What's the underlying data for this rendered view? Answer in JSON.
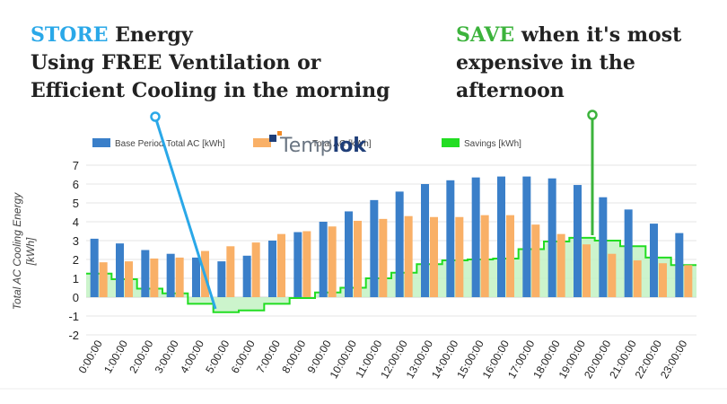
{
  "headline_left": {
    "keyword": "STORE",
    "line1_rest": " Energy",
    "line2": "Using FREE Ventilation or",
    "line3": "Efficient Cooling in the morning"
  },
  "headline_right": {
    "keyword": "SAVE",
    "line1_rest": " when it's most",
    "line2": "expensive in the",
    "line3": "afternoon"
  },
  "logo": {
    "part1": "Temp",
    "part2": "lok"
  },
  "colors": {
    "store_accent": "#2aa8e8",
    "save_accent": "#3cb33c",
    "base_bar": "#3a7fc9",
    "current_bar": "#f9b067",
    "savings_line": "#22dd22",
    "savings_fill": "#c3f2c3",
    "logo_dark": "#1f3e78",
    "logo_orange": "#f28a24",
    "logo_light": "#6a7582"
  },
  "chart_data": {
    "type": "bar",
    "categories": [
      "0:00:00",
      "1:00:00",
      "2:00:00",
      "3:00:00",
      "4:00:00",
      "5:00:00",
      "6:00:00",
      "7:00:00",
      "8:00:00",
      "9:00:00",
      "10:00:00",
      "11:00:00",
      "12:00:00",
      "13:00:00",
      "14:00:00",
      "15:00:00",
      "16:00:00",
      "17:00:00",
      "18:00:00",
      "19:00:00",
      "20:00:00",
      "21:00:00",
      "22:00:00",
      "23:00:00"
    ],
    "series": [
      {
        "name": "Base Period Total AC [kWh]",
        "kind": "bar",
        "values": [
          3.1,
          2.85,
          2.5,
          2.3,
          2.1,
          1.9,
          2.2,
          3.0,
          3.45,
          4.0,
          4.55,
          5.15,
          5.6,
          6.0,
          6.2,
          6.35,
          6.4,
          6.4,
          6.3,
          5.95,
          5.3,
          4.65,
          3.9,
          3.4
        ]
      },
      {
        "name": "Total AC [kWh]",
        "kind": "bar",
        "values": [
          1.85,
          1.9,
          2.05,
          2.1,
          2.45,
          2.7,
          2.9,
          3.35,
          3.5,
          3.75,
          4.05,
          4.15,
          4.3,
          4.25,
          4.25,
          4.35,
          4.35,
          3.85,
          3.35,
          2.8,
          2.3,
          1.95,
          1.8,
          1.7
        ]
      },
      {
        "name": "Savings [kWh]",
        "kind": "area-step",
        "values": [
          1.25,
          0.95,
          0.45,
          0.2,
          -0.35,
          -0.8,
          -0.7,
          -0.35,
          -0.05,
          0.25,
          0.5,
          1.0,
          1.3,
          1.75,
          1.95,
          2.0,
          2.05,
          2.55,
          2.95,
          3.15,
          3.0,
          2.7,
          2.1,
          1.7
        ]
      }
    ],
    "ylabel": "Total AC Cooling Energy [kWh]",
    "ylim": [
      -2,
      7
    ],
    "yticks": [
      7,
      6,
      5,
      4,
      3,
      2,
      1,
      0,
      -1,
      -2
    ],
    "legend_position": "top"
  }
}
